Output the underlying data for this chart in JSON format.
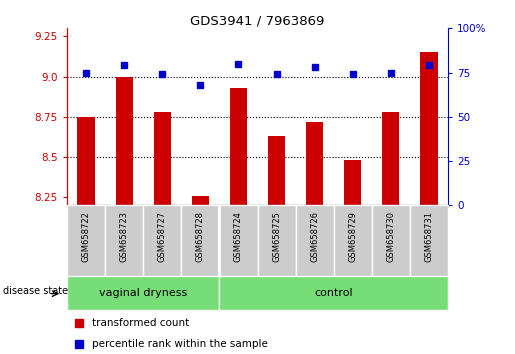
{
  "title": "GDS3941 / 7963869",
  "samples": [
    "GSM658722",
    "GSM658723",
    "GSM658727",
    "GSM658728",
    "GSM658724",
    "GSM658725",
    "GSM658726",
    "GSM658729",
    "GSM658730",
    "GSM658731"
  ],
  "bar_values": [
    8.75,
    9.0,
    8.78,
    8.26,
    8.93,
    8.63,
    8.72,
    8.48,
    8.78,
    9.15
  ],
  "dot_values": [
    75,
    79,
    74,
    68,
    80,
    74,
    78,
    74,
    75,
    79
  ],
  "groups": [
    {
      "label": "vaginal dryness",
      "start": 0,
      "end": 4
    },
    {
      "label": "control",
      "start": 4,
      "end": 10
    }
  ],
  "ylim_left": [
    8.2,
    9.3
  ],
  "ylim_right": [
    0,
    100
  ],
  "yticks_left": [
    8.25,
    8.5,
    8.75,
    9.0,
    9.25
  ],
  "yticks_right": [
    0,
    25,
    50,
    75,
    100
  ],
  "grid_values": [
    8.5,
    8.75,
    9.0
  ],
  "bar_color": "#cc0000",
  "dot_color": "#0000cc",
  "group_bg_color": "#77dd77",
  "tick_label_bg": "#cccccc",
  "legend_bar_label": "transformed count",
  "legend_dot_label": "percentile rank within the sample",
  "disease_state_label": "disease state",
  "left_axis_color": "#cc0000",
  "right_axis_color": "#0000cc"
}
